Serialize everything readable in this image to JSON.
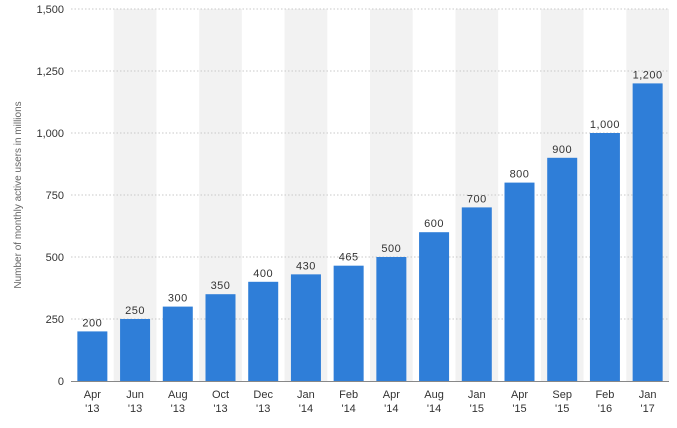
{
  "chart_data": {
    "type": "bar",
    "categories": [
      [
        "Apr",
        "'13"
      ],
      [
        "Jun",
        "'13"
      ],
      [
        "Aug",
        "'13"
      ],
      [
        "Oct",
        "'13"
      ],
      [
        "Dec",
        "'13"
      ],
      [
        "Jan",
        "'14"
      ],
      [
        "Feb",
        "'14"
      ],
      [
        "Apr",
        "'14"
      ],
      [
        "Aug",
        "'14"
      ],
      [
        "Jan",
        "'15"
      ],
      [
        "Apr",
        "'15"
      ],
      [
        "Sep",
        "'15"
      ],
      [
        "Feb",
        "'16"
      ],
      [
        "Jan",
        "'17"
      ]
    ],
    "values": [
      200,
      250,
      300,
      350,
      400,
      430,
      465,
      500,
      600,
      700,
      800,
      900,
      1000,
      1200
    ],
    "data_labels": [
      "200",
      "250",
      "300",
      "350",
      "400",
      "430",
      "465",
      "500",
      "600",
      "700",
      "800",
      "900",
      "1,000",
      "1,200"
    ],
    "ylabel": "Number of monthly active users in millions",
    "ylim": [
      0,
      1500
    ],
    "yticks": [
      0,
      250,
      500,
      750,
      1000,
      1250,
      1500
    ],
    "ytick_labels": [
      "0",
      "250",
      "500",
      "750",
      "1,000",
      "1,250",
      "1,500"
    ],
    "grid": true,
    "colors": {
      "bar": "#2f7ed8",
      "band": "#f2f2f2",
      "grid": "#c8c8c8",
      "text": "#333333"
    }
  }
}
